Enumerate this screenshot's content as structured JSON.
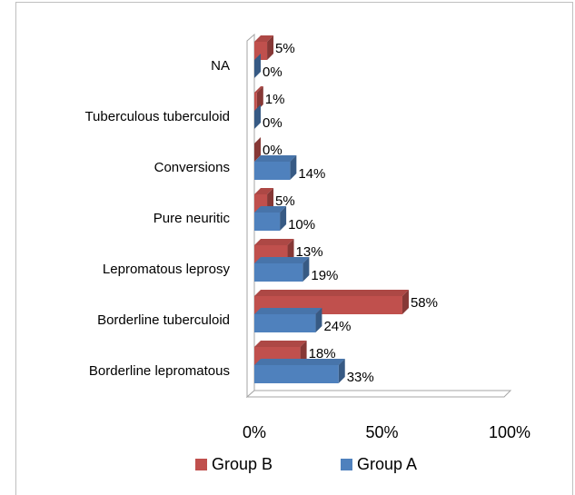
{
  "chart_data": {
    "type": "bar3d_horizontal",
    "categories": [
      "Borderline lepromatous",
      "Borderline tuberculoid",
      "Lepromatous leprosy",
      "Pure neuritic",
      "Conversions",
      "Tuberculous tuberculoid",
      "NA"
    ],
    "series": [
      {
        "name": "Group B",
        "color": "#c0504d",
        "values": [
          18,
          58,
          13,
          5,
          0,
          1,
          5
        ],
        "value_labels": [
          "18%",
          "58%",
          "13%",
          "5%",
          "0%",
          "1%",
          "5%"
        ]
      },
      {
        "name": "Group A",
        "color": "#4f81bd",
        "values": [
          33,
          24,
          19,
          10,
          14,
          0,
          0
        ],
        "value_labels": [
          "33%",
          "24%",
          "19%",
          "10%",
          "14%",
          "0%",
          "0%"
        ]
      }
    ],
    "xlim": [
      0,
      100
    ],
    "xticks": [
      {
        "value": 0,
        "label": "0%"
      },
      {
        "value": 50,
        "label": "50%"
      },
      {
        "value": 100,
        "label": "100%"
      }
    ],
    "legend": "bottom"
  }
}
